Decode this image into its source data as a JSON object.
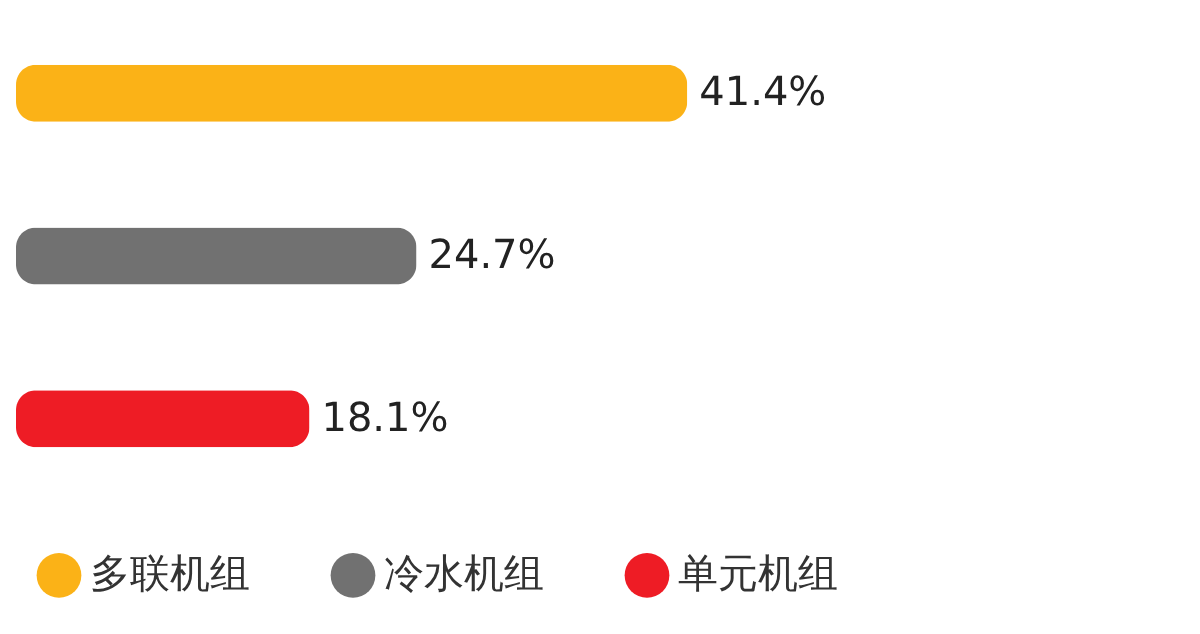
{
  "chart_data": {
    "type": "bar",
    "orientation": "horizontal",
    "stacked": true,
    "legend": "bottom",
    "categories": [
      null,
      null,
      null
    ],
    "series": [
      {
        "name": "多联机组",
        "color": "#fbb217",
        "values": [
          41.4,
          null,
          null
        ],
        "value_labels": [
          "41.4%",
          null,
          null
        ]
      },
      {
        "name": "冷水机组",
        "color": "#717171",
        "values": [
          null,
          24.7,
          null
        ],
        "value_labels": [
          null,
          "24.7%",
          null
        ]
      },
      {
        "name": "单元机组",
        "color": "#ee1c25",
        "values": [
          null,
          null,
          18.1
        ],
        "value_labels": [
          null,
          null,
          "18.1%"
        ]
      }
    ]
  }
}
